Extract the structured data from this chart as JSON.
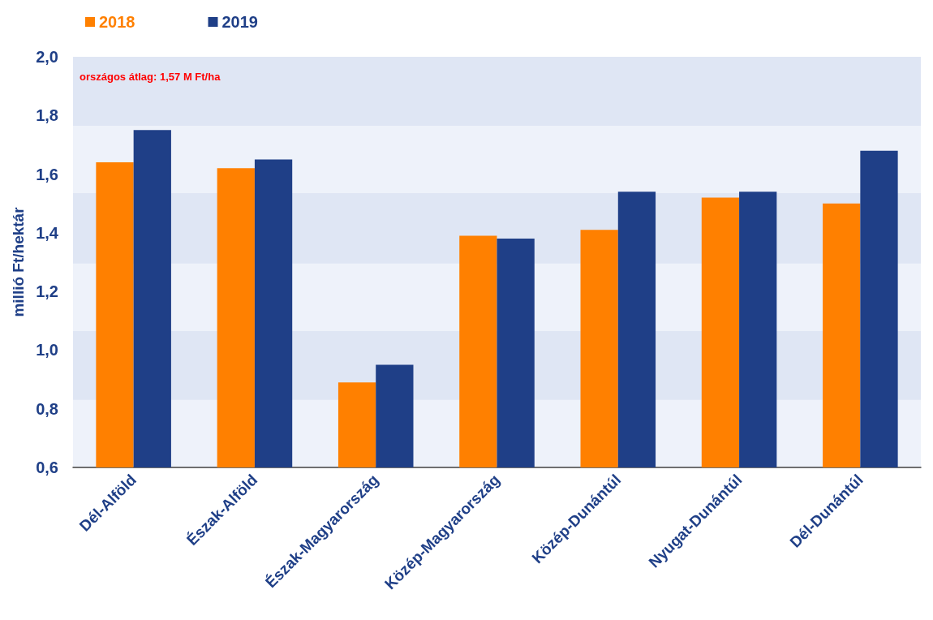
{
  "chart_data": {
    "type": "bar",
    "ylabel": "millió Ft/hektár",
    "categories": [
      "Dél-Alföld",
      "Észak-Alföld",
      "Észak-Magyarország",
      "Közép-Magyarország",
      "Közép-Dunántúl",
      "Nyugat-Dunántúl",
      "Dél-Dunántúl"
    ],
    "series": [
      {
        "name": "2018",
        "color": "#ff8000",
        "values": [
          1.64,
          1.62,
          0.89,
          1.39,
          1.41,
          1.52,
          1.5
        ]
      },
      {
        "name": "2019",
        "color": "#1f3f87",
        "values": [
          1.75,
          1.65,
          0.95,
          1.38,
          1.54,
          1.54,
          1.68
        ]
      }
    ],
    "ylim": [
      0.6,
      2.0
    ],
    "yticks": [
      {
        "value": 0.6,
        "label": "0,6"
      },
      {
        "value": 0.8,
        "label": "0,8"
      },
      {
        "value": 1.0,
        "label": "1,0"
      },
      {
        "value": 1.2,
        "label": "1,2"
      },
      {
        "value": 1.4,
        "label": "1,4"
      },
      {
        "value": 1.6,
        "label": "1,6"
      },
      {
        "value": 1.8,
        "label": "1,8"
      },
      {
        "value": 2.0,
        "label": "2,0"
      }
    ],
    "bands": [
      {
        "axis": "y",
        "from": 1.765,
        "to": 2.0,
        "color": "#dfe6f4"
      },
      {
        "axis": "y",
        "from": 1.295,
        "to": 1.535,
        "color": "#dfe6f4"
      },
      {
        "axis": "y",
        "from": 0.83,
        "to": 1.065,
        "color": "#dfe6f4"
      }
    ],
    "annotations": [
      "országos átlag: 1,57 M Ft/ha"
    ],
    "legend": "top left",
    "grid": false
  }
}
